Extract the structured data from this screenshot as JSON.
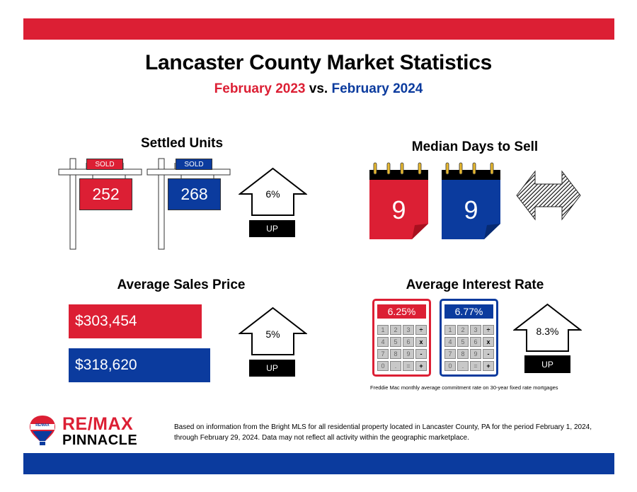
{
  "header": {
    "title": "Lancaster County Market Statistics",
    "period_2023": "February 2023",
    "vs": "vs.",
    "period_2024": "February 2024"
  },
  "colors": {
    "red": "#dc1f34",
    "blue": "#0b3b9e",
    "black": "#000000"
  },
  "settled_units": {
    "title": "Settled Units",
    "sold_label_2023": "SOLD",
    "sold_label_2024": "SOLD",
    "value_2023": "252",
    "value_2024": "268",
    "change": "6%",
    "direction": "UP"
  },
  "median_days": {
    "title": "Median Days to Sell",
    "value_2023": "9",
    "value_2024": "9",
    "direction_icon": "double-arrow-icon"
  },
  "avg_price": {
    "title": "Average Sales Price",
    "value_2023": "$303,454",
    "value_2024": "$318,620",
    "change": "5%",
    "direction": "UP"
  },
  "interest_rate": {
    "title": "Average Interest Rate",
    "value_2023": "6.25%",
    "value_2024": "6.77%",
    "change": "8.3%",
    "direction": "UP",
    "footnote": "Freddie Mac monthly average commitment rate on 30-year fixed rate mortgages",
    "keys": [
      "1",
      "2",
      "3",
      "÷",
      "4",
      "5",
      "6",
      "x",
      "7",
      "8",
      "9",
      "-",
      "0",
      ".",
      "=",
      "+"
    ]
  },
  "logo": {
    "brand": "RE/MAX",
    "name": "PINNACLE",
    "balloon_text": "RE/MAX"
  },
  "footer": {
    "disclaimer": "Based on information from the Bright MLS for all residential property located in Lancaster County, PA for the period February 1, 2024, through February 29, 2024. Data may not reflect all activity within the geographic marketplace."
  }
}
